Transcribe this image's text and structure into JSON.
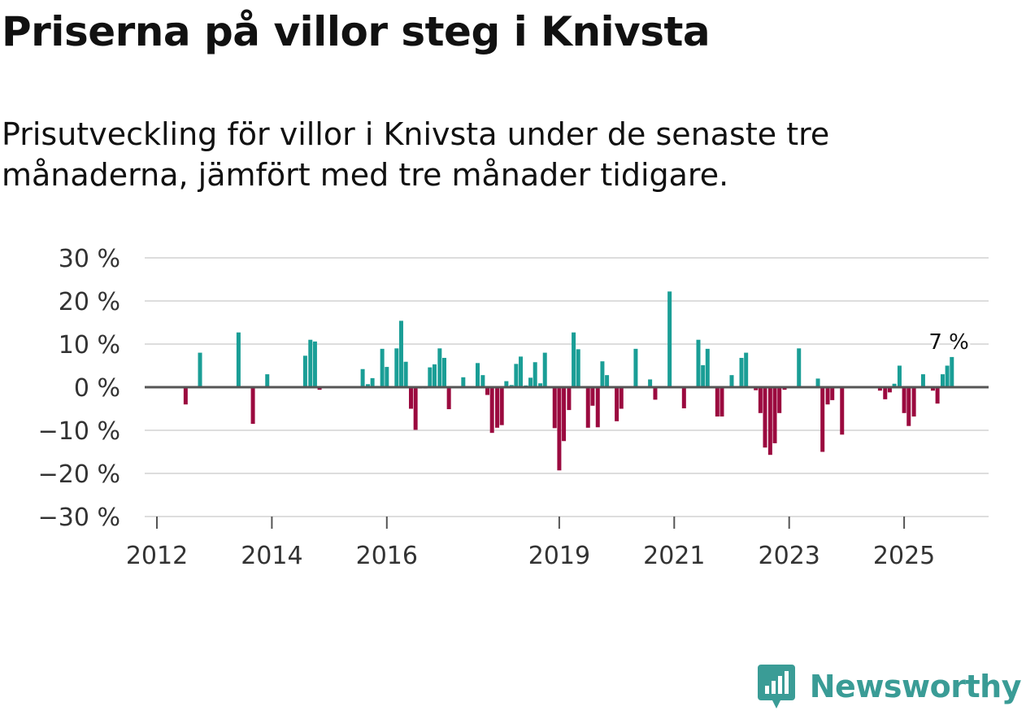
{
  "header": {
    "title": "Priserna på villor steg i Knivsta",
    "subtitle": "Prisutveckling för villor i Knivsta under de senaste tre månaderna, jämfört med tre månader tidigare."
  },
  "brand": {
    "name": "Newsworthy"
  },
  "colors": {
    "positive": "#1a9e96",
    "negative": "#9b0a3f",
    "grid": "#dddddd",
    "zero": "#555555"
  },
  "chart_data": {
    "type": "bar",
    "title": "Priserna på villor steg i Knivsta",
    "xlabel": "",
    "ylabel": "",
    "ylim": [
      -30,
      30
    ],
    "xlim": [
      2012,
      2026.5
    ],
    "yticks": [
      30,
      20,
      10,
      0,
      -10,
      -20,
      -30
    ],
    "ytick_labels": [
      "30 %",
      "20 %",
      "10 %",
      "0 %",
      "−10 %",
      "−20 %",
      "−30 %"
    ],
    "xticks": [
      2012,
      2014,
      2016,
      2019,
      2021,
      2023,
      2025
    ],
    "xtick_labels": [
      "2012",
      "2014",
      "2016",
      "2019",
      "2021",
      "2023",
      "2025"
    ],
    "annotation": {
      "text": "7 %",
      "x": 2025.75,
      "y": 7
    },
    "points": [
      {
        "x": 2012.5,
        "y": -4
      },
      {
        "x": 2012.75,
        "y": 8
      },
      {
        "x": 2013.42,
        "y": 12.7
      },
      {
        "x": 2013.67,
        "y": -8.5
      },
      {
        "x": 2013.92,
        "y": 3
      },
      {
        "x": 2014.58,
        "y": 7.3
      },
      {
        "x": 2014.67,
        "y": 11
      },
      {
        "x": 2014.75,
        "y": 10.6
      },
      {
        "x": 2014.83,
        "y": -0.6
      },
      {
        "x": 2015.58,
        "y": 4.2
      },
      {
        "x": 2015.67,
        "y": 0.7
      },
      {
        "x": 2015.75,
        "y": 2.1
      },
      {
        "x": 2015.83,
        "y": 0.3
      },
      {
        "x": 2015.92,
        "y": 8.9
      },
      {
        "x": 2016.0,
        "y": 4.7
      },
      {
        "x": 2016.17,
        "y": 9
      },
      {
        "x": 2016.25,
        "y": 15.4
      },
      {
        "x": 2016.33,
        "y": 5.9
      },
      {
        "x": 2016.42,
        "y": -5
      },
      {
        "x": 2016.5,
        "y": -9.9
      },
      {
        "x": 2016.58,
        "y": -0.3
      },
      {
        "x": 2016.67,
        "y": -0.3
      },
      {
        "x": 2016.75,
        "y": 4.6
      },
      {
        "x": 2016.83,
        "y": 5.3
      },
      {
        "x": 2016.92,
        "y": 9
      },
      {
        "x": 2017.0,
        "y": 6.8
      },
      {
        "x": 2017.08,
        "y": -5.1
      },
      {
        "x": 2017.33,
        "y": 2.3
      },
      {
        "x": 2017.58,
        "y": 5.6
      },
      {
        "x": 2017.67,
        "y": 2.8
      },
      {
        "x": 2017.75,
        "y": -1.8
      },
      {
        "x": 2017.83,
        "y": -10.6
      },
      {
        "x": 2017.92,
        "y": -9.4
      },
      {
        "x": 2018.0,
        "y": -8.8
      },
      {
        "x": 2018.08,
        "y": 1.4
      },
      {
        "x": 2018.17,
        "y": 0.5
      },
      {
        "x": 2018.25,
        "y": 5.4
      },
      {
        "x": 2018.33,
        "y": 7.1
      },
      {
        "x": 2018.42,
        "y": 0.4
      },
      {
        "x": 2018.5,
        "y": 2.2
      },
      {
        "x": 2018.58,
        "y": 5.8
      },
      {
        "x": 2018.67,
        "y": 0.9
      },
      {
        "x": 2018.75,
        "y": 8
      },
      {
        "x": 2018.92,
        "y": -9.5
      },
      {
        "x": 2019.0,
        "y": -19.3
      },
      {
        "x": 2019.08,
        "y": -12.5
      },
      {
        "x": 2019.17,
        "y": -5.3
      },
      {
        "x": 2019.25,
        "y": 12.7
      },
      {
        "x": 2019.33,
        "y": 8.8
      },
      {
        "x": 2019.5,
        "y": -9.4
      },
      {
        "x": 2019.58,
        "y": -4.3
      },
      {
        "x": 2019.67,
        "y": -9.3
      },
      {
        "x": 2019.75,
        "y": 6
      },
      {
        "x": 2019.83,
        "y": 2.8
      },
      {
        "x": 2020.0,
        "y": -7.9
      },
      {
        "x": 2020.08,
        "y": -5
      },
      {
        "x": 2020.33,
        "y": 8.9
      },
      {
        "x": 2020.58,
        "y": 1.8
      },
      {
        "x": 2020.67,
        "y": -2.9
      },
      {
        "x": 2020.92,
        "y": 22.2
      },
      {
        "x": 2021.17,
        "y": -4.9
      },
      {
        "x": 2021.42,
        "y": 11
      },
      {
        "x": 2021.5,
        "y": 5.1
      },
      {
        "x": 2021.58,
        "y": 8.9
      },
      {
        "x": 2021.75,
        "y": -6.8
      },
      {
        "x": 2021.83,
        "y": -6.8
      },
      {
        "x": 2022.0,
        "y": 2.8
      },
      {
        "x": 2022.17,
        "y": 6.8
      },
      {
        "x": 2022.25,
        "y": 8
      },
      {
        "x": 2022.42,
        "y": -0.7
      },
      {
        "x": 2022.5,
        "y": -6
      },
      {
        "x": 2022.58,
        "y": -14
      },
      {
        "x": 2022.67,
        "y": -15.7
      },
      {
        "x": 2022.75,
        "y": -13
      },
      {
        "x": 2022.83,
        "y": -6
      },
      {
        "x": 2022.92,
        "y": -0.6
      },
      {
        "x": 2023.17,
        "y": 9
      },
      {
        "x": 2023.5,
        "y": 2
      },
      {
        "x": 2023.58,
        "y": -15
      },
      {
        "x": 2023.67,
        "y": -4
      },
      {
        "x": 2023.75,
        "y": -3
      },
      {
        "x": 2023.92,
        "y": -11
      },
      {
        "x": 2024.58,
        "y": -0.8
      },
      {
        "x": 2024.67,
        "y": -2.8
      },
      {
        "x": 2024.75,
        "y": -1.2
      },
      {
        "x": 2024.83,
        "y": 0.8
      },
      {
        "x": 2024.92,
        "y": 5
      },
      {
        "x": 2025.0,
        "y": -6
      },
      {
        "x": 2025.08,
        "y": -9
      },
      {
        "x": 2025.17,
        "y": -6.8
      },
      {
        "x": 2025.33,
        "y": 3
      },
      {
        "x": 2025.5,
        "y": -0.8
      },
      {
        "x": 2025.58,
        "y": -3.8
      },
      {
        "x": 2025.67,
        "y": 3
      },
      {
        "x": 2025.75,
        "y": 5
      },
      {
        "x": 2025.83,
        "y": 7
      }
    ]
  }
}
